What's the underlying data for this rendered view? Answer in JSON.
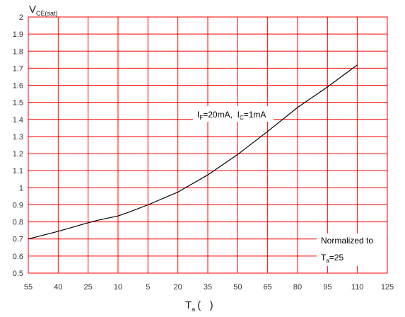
{
  "chart_data": {
    "type": "line",
    "ylabel": {
      "main": "V",
      "sub": "CE(sat)"
    },
    "xlabel": {
      "main": "T",
      "sub": "a",
      "unit": "(   )"
    },
    "x_tick_labels": [
      "55",
      "40",
      "25",
      "10",
      "5",
      "20",
      "35",
      "50",
      "65",
      "80",
      "95",
      "110",
      "125"
    ],
    "x_tick_values": [
      -55,
      -40,
      -25,
      -10,
      5,
      20,
      35,
      50,
      65,
      80,
      95,
      110,
      125
    ],
    "xlim": [
      -55,
      125
    ],
    "y_tick_labels": [
      "0.5",
      "0.6",
      "0.7",
      "0.8",
      "0.9",
      "1",
      "1.1",
      "1.2",
      "1.3",
      "1.4",
      "1.5",
      "1.6",
      "1.7",
      "1.8",
      "1.9",
      "2"
    ],
    "y_tick_values": [
      0.5,
      0.6,
      0.7,
      0.8,
      0.9,
      1.0,
      1.1,
      1.2,
      1.3,
      1.4,
      1.5,
      1.6,
      1.7,
      1.8,
      1.9,
      2.0
    ],
    "ylim": [
      0.5,
      2.0
    ],
    "grid": true,
    "series": [
      {
        "x": [
          -55,
          -40,
          -25,
          -20,
          -10,
          -5,
          5,
          20,
          35,
          50,
          65,
          80,
          95,
          110
        ],
        "y": [
          0.7,
          0.745,
          0.795,
          0.81,
          0.835,
          0.855,
          0.9,
          0.975,
          1.075,
          1.195,
          1.33,
          1.47,
          1.59,
          1.72
        ]
      }
    ],
    "annotations": [
      {
        "segments": [
          "I",
          "F",
          "=20mA,  I",
          "C",
          "=1mA"
        ]
      },
      {
        "segments": [
          "Normalized to"
        ]
      },
      {
        "segments": [
          "T",
          "a",
          "=25"
        ]
      }
    ]
  },
  "colors": {
    "grid": "#ff0000",
    "line": "#000000",
    "background": "#ffffff",
    "text": "#333333"
  }
}
